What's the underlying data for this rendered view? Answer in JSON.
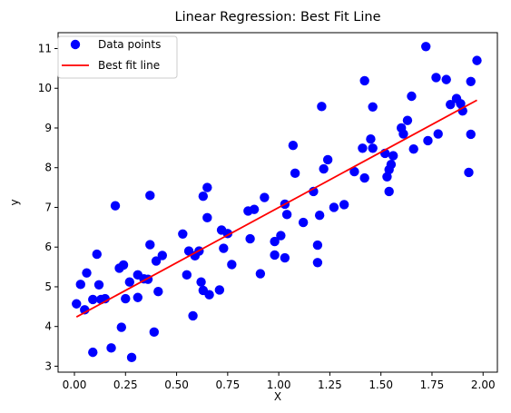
{
  "chart_data": {
    "type": "scatter",
    "title": "Linear Regression: Best Fit Line",
    "xlabel": "X",
    "ylabel": "y",
    "xlim": [
      -0.08,
      2.07
    ],
    "ylim": [
      2.85,
      11.4
    ],
    "xticks": [
      0.0,
      0.25,
      0.5,
      0.75,
      1.0,
      1.25,
      1.5,
      1.75,
      2.0
    ],
    "xtick_labels": [
      "0.00",
      "0.25",
      "0.50",
      "0.75",
      "1.00",
      "1.25",
      "1.50",
      "1.75",
      "2.00"
    ],
    "yticks": [
      3,
      4,
      5,
      6,
      7,
      8,
      9,
      10,
      11
    ],
    "ytick_labels": [
      "3",
      "4",
      "5",
      "6",
      "7",
      "8",
      "9",
      "10",
      "11"
    ],
    "grid": false,
    "legend_position": "top-left",
    "series": [
      {
        "name": "Data points",
        "kind": "scatter",
        "color": "#0000ff",
        "points": [
          [
            0.01,
            4.57
          ],
          [
            0.03,
            5.06
          ],
          [
            0.05,
            4.42
          ],
          [
            0.06,
            5.35
          ],
          [
            0.09,
            3.35
          ],
          [
            0.09,
            4.68
          ],
          [
            0.11,
            5.82
          ],
          [
            0.12,
            5.05
          ],
          [
            0.13,
            4.68
          ],
          [
            0.15,
            4.7
          ],
          [
            0.18,
            3.46
          ],
          [
            0.2,
            7.04
          ],
          [
            0.22,
            5.47
          ],
          [
            0.23,
            3.98
          ],
          [
            0.24,
            5.55
          ],
          [
            0.25,
            4.7
          ],
          [
            0.27,
            5.12
          ],
          [
            0.28,
            3.22
          ],
          [
            0.31,
            4.73
          ],
          [
            0.31,
            5.3
          ],
          [
            0.34,
            5.2
          ],
          [
            0.36,
            5.19
          ],
          [
            0.37,
            6.06
          ],
          [
            0.37,
            7.3
          ],
          [
            0.39,
            3.86
          ],
          [
            0.4,
            5.65
          ],
          [
            0.41,
            4.88
          ],
          [
            0.43,
            5.79
          ],
          [
            0.53,
            6.33
          ],
          [
            0.55,
            5.3
          ],
          [
            0.56,
            5.9
          ],
          [
            0.58,
            4.27
          ],
          [
            0.59,
            5.78
          ],
          [
            0.61,
            5.9
          ],
          [
            0.62,
            5.12
          ],
          [
            0.63,
            7.28
          ],
          [
            0.63,
            4.91
          ],
          [
            0.65,
            7.5
          ],
          [
            0.65,
            6.74
          ],
          [
            0.66,
            4.8
          ],
          [
            0.71,
            4.92
          ],
          [
            0.72,
            6.43
          ],
          [
            0.73,
            5.97
          ],
          [
            0.75,
            6.34
          ],
          [
            0.77,
            5.56
          ],
          [
            0.85,
            6.91
          ],
          [
            0.86,
            6.21
          ],
          [
            0.88,
            6.95
          ],
          [
            0.91,
            5.33
          ],
          [
            0.93,
            7.25
          ],
          [
            0.98,
            6.14
          ],
          [
            0.98,
            5.8
          ],
          [
            1.01,
            6.29
          ],
          [
            1.03,
            7.08
          ],
          [
            1.03,
            5.73
          ],
          [
            1.04,
            6.82
          ],
          [
            1.07,
            8.56
          ],
          [
            1.08,
            7.86
          ],
          [
            1.12,
            6.62
          ],
          [
            1.17,
            7.4
          ],
          [
            1.19,
            6.05
          ],
          [
            1.19,
            5.61
          ],
          [
            1.2,
            6.8
          ],
          [
            1.21,
            9.54
          ],
          [
            1.22,
            7.97
          ],
          [
            1.24,
            8.2
          ],
          [
            1.27,
            7.0
          ],
          [
            1.32,
            7.07
          ],
          [
            1.37,
            7.9
          ],
          [
            1.41,
            8.49
          ],
          [
            1.42,
            7.74
          ],
          [
            1.42,
            10.19
          ],
          [
            1.45,
            8.72
          ],
          [
            1.46,
            9.53
          ],
          [
            1.46,
            8.49
          ],
          [
            1.52,
            8.36
          ],
          [
            1.53,
            7.77
          ],
          [
            1.54,
            7.4
          ],
          [
            1.54,
            7.95
          ],
          [
            1.55,
            8.08
          ],
          [
            1.56,
            8.3
          ],
          [
            1.6,
            9.0
          ],
          [
            1.61,
            8.85
          ],
          [
            1.63,
            9.19
          ],
          [
            1.65,
            9.8
          ],
          [
            1.66,
            8.47
          ],
          [
            1.72,
            11.05
          ],
          [
            1.73,
            8.68
          ],
          [
            1.77,
            10.27
          ],
          [
            1.78,
            8.85
          ],
          [
            1.82,
            10.22
          ],
          [
            1.84,
            9.59
          ],
          [
            1.87,
            9.74
          ],
          [
            1.89,
            9.61
          ],
          [
            1.9,
            9.43
          ],
          [
            1.93,
            7.88
          ],
          [
            1.94,
            10.17
          ],
          [
            1.94,
            8.84
          ],
          [
            1.97,
            10.7
          ]
        ]
      },
      {
        "name": "Best fit line",
        "kind": "line",
        "color": "#ff0000",
        "points": [
          [
            0.01,
            4.24
          ],
          [
            1.97,
            9.7
          ]
        ]
      }
    ]
  }
}
